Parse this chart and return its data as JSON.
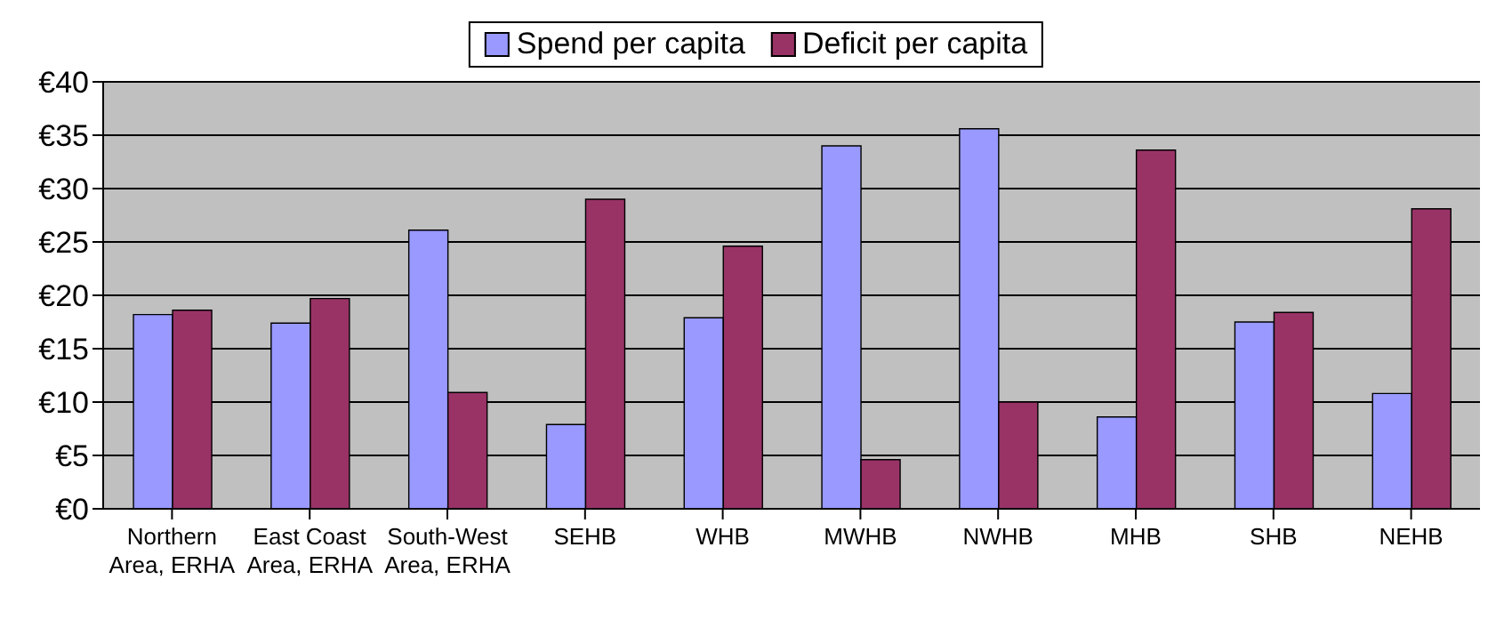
{
  "chart_data": {
    "type": "bar",
    "categories": [
      "Northern Area, ERHA",
      "East Coast Area, ERHA",
      "South-West Area, ERHA",
      "SEHB",
      "WHB",
      "MWHB",
      "NWHB",
      "MHB",
      "SHB",
      "NEHB"
    ],
    "series": [
      {
        "name": "Spend per capita",
        "color": "#9999ff",
        "values": [
          18.2,
          17.4,
          26.1,
          7.9,
          17.9,
          34,
          35.6,
          8.6,
          17.5,
          10.8
        ]
      },
      {
        "name": "Deficit per capita",
        "color": "#993366",
        "values": [
          18.6,
          19.7,
          10.9,
          29,
          24.6,
          4.6,
          10,
          33.6,
          18.4,
          28.1
        ]
      }
    ],
    "ylim": [
      0,
      40
    ],
    "yticks": [
      {
        "value": 0,
        "label": "€0"
      },
      {
        "value": 5,
        "label": "€5"
      },
      {
        "value": 10,
        "label": "€10"
      },
      {
        "value": 15,
        "label": "€15"
      },
      {
        "value": 20,
        "label": "€20"
      },
      {
        "value": 25,
        "label": "€25"
      },
      {
        "value": 30,
        "label": "€30"
      },
      {
        "value": 35,
        "label": "€35"
      },
      {
        "value": 40,
        "label": "€40"
      }
    ],
    "grid": "y",
    "legend": "top"
  }
}
